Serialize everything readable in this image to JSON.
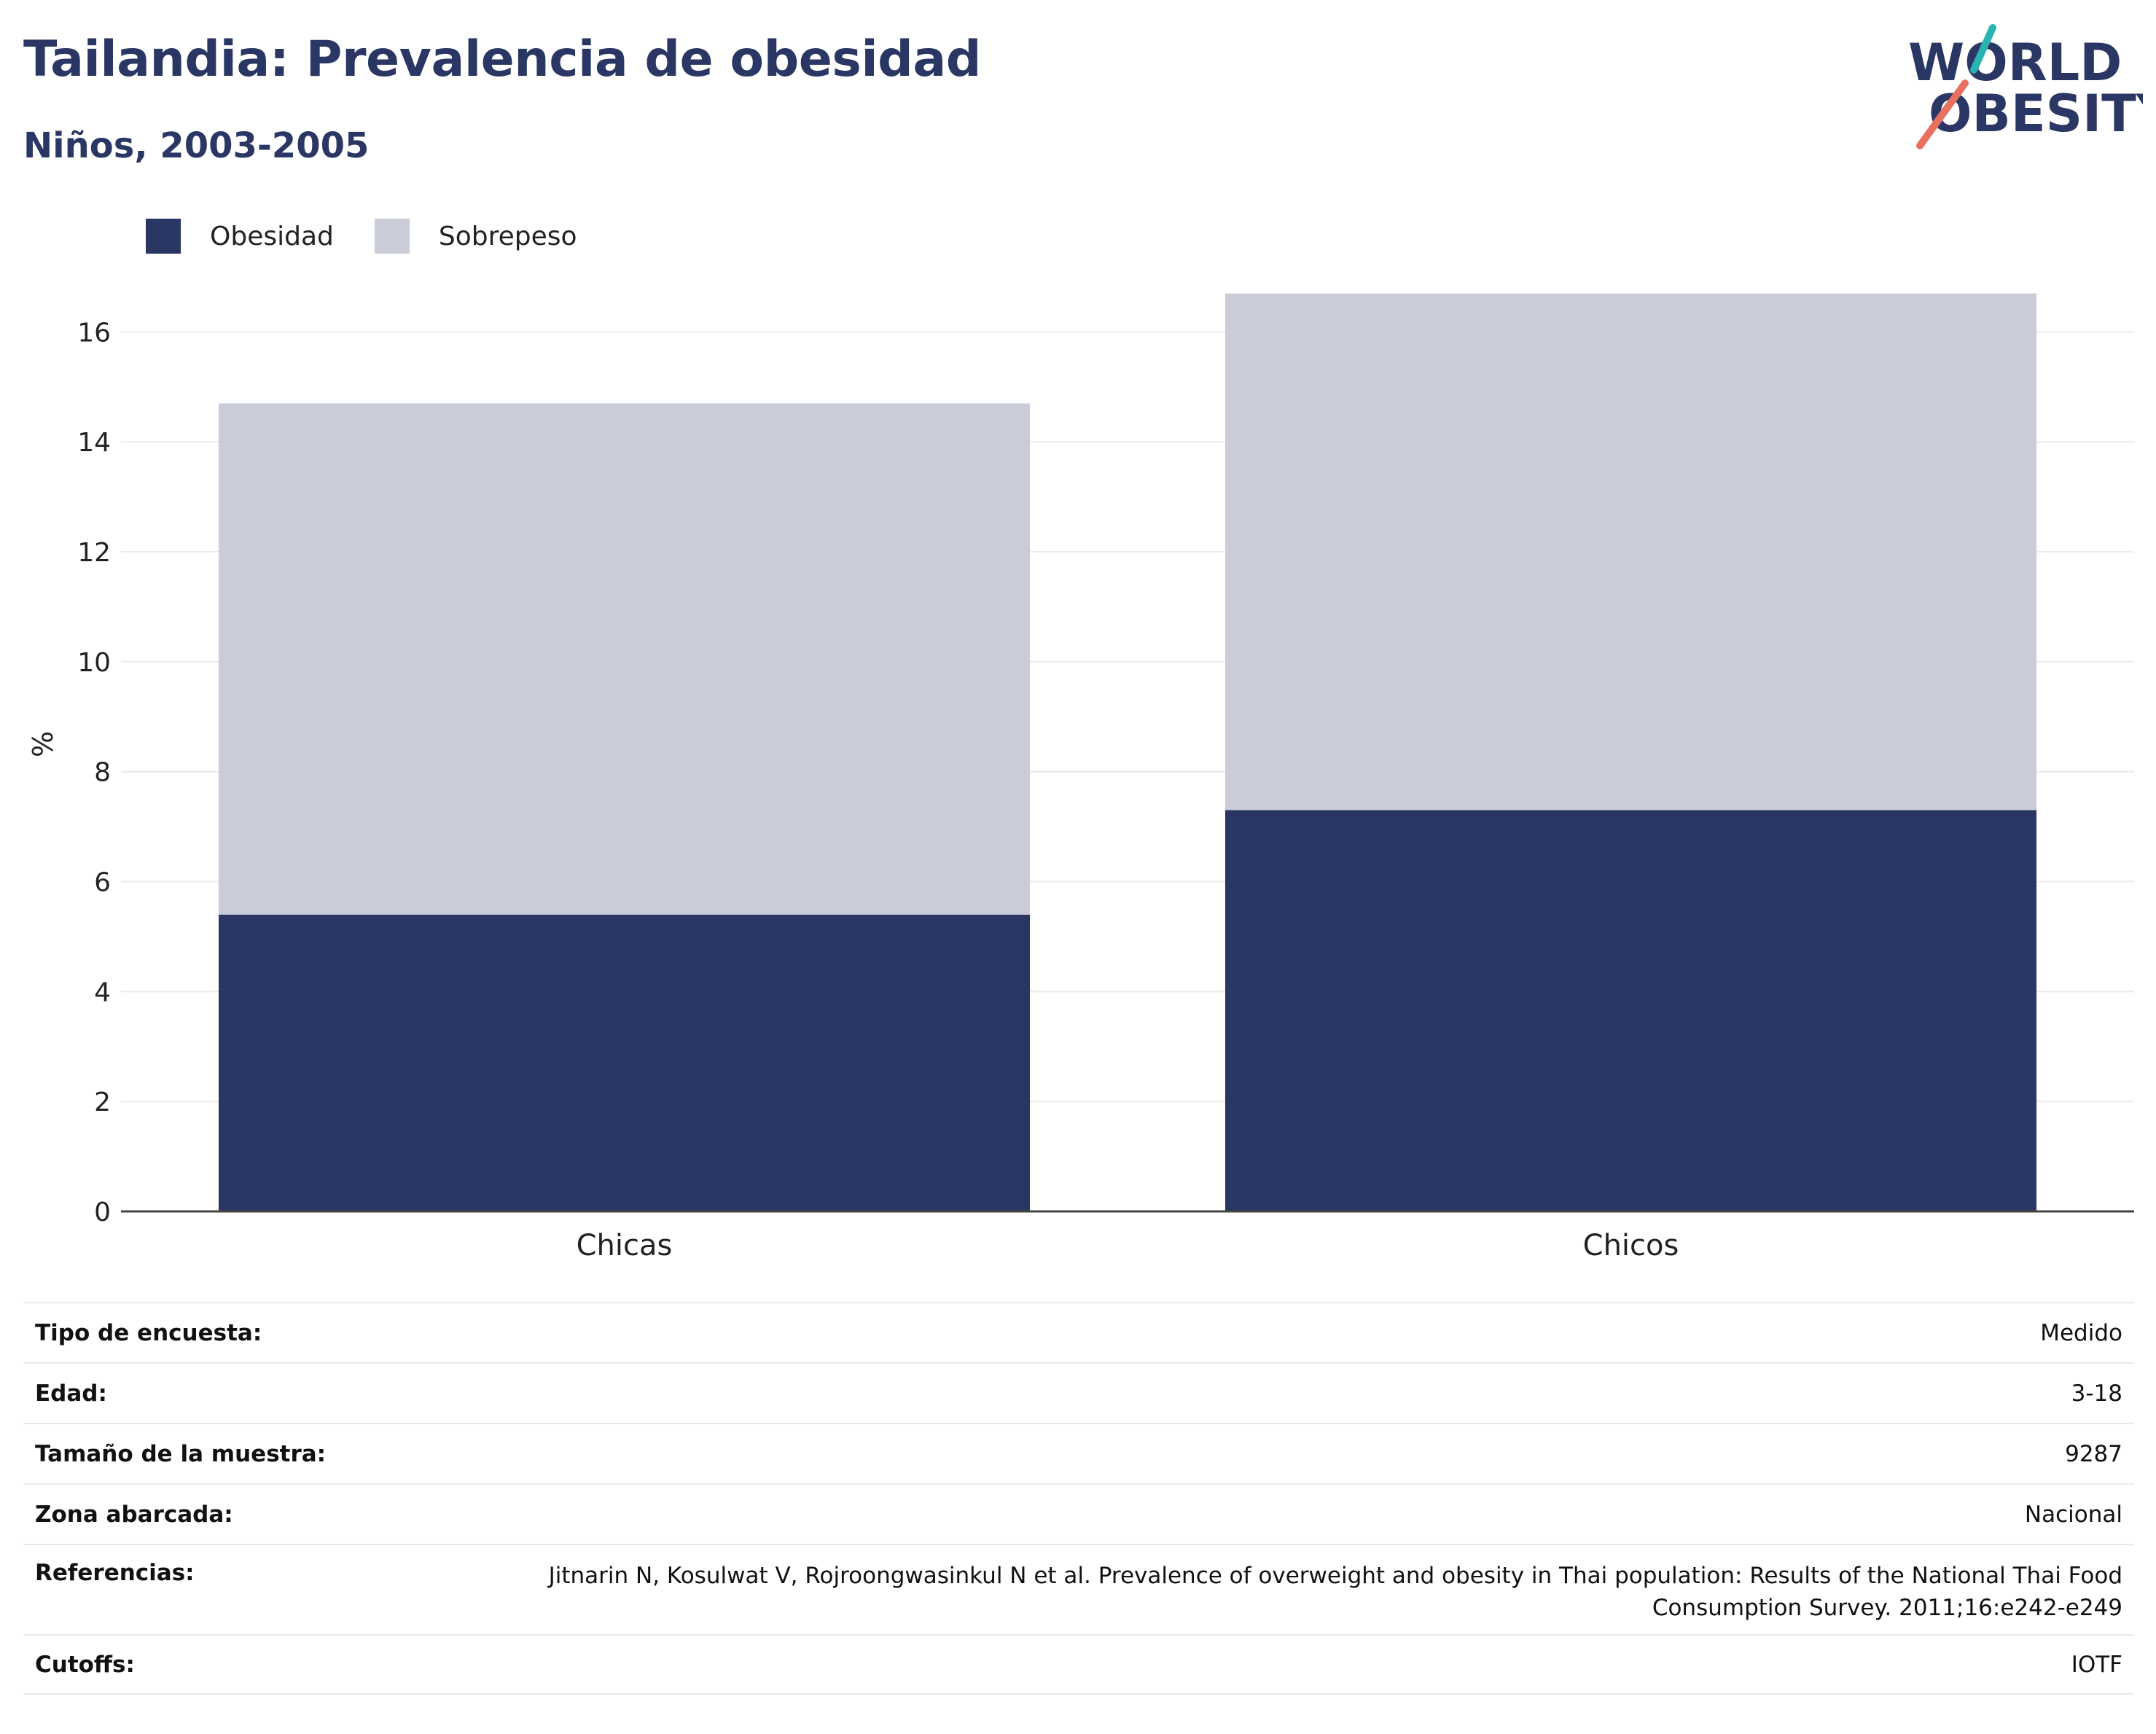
{
  "header": {
    "title": "Tailandia: Prevalencia de obesidad",
    "subtitle": "Niños, 2003-2005"
  },
  "logo": {
    "line1": "WORLD",
    "line2": "OBESITY",
    "name": "world-obesity-logo"
  },
  "colors": {
    "obesity": "#2a3663",
    "overweight": "#cacdd9",
    "accent_teal": "#2ab3b1",
    "accent_coral": "#e8705f",
    "grid": "#ebebeb",
    "axis": "#444444"
  },
  "chart_data": {
    "type": "bar",
    "stacked": true,
    "categories": [
      "Chicas",
      "Chicos"
    ],
    "series": [
      {
        "name": "Obesidad",
        "values": [
          5.4,
          7.3
        ]
      },
      {
        "name": "Sobrepeso",
        "values": [
          9.3,
          9.4
        ]
      }
    ],
    "ylabel": "%",
    "ylim": [
      0,
      17
    ],
    "yticks": [
      0,
      2,
      4,
      6,
      8,
      10,
      12,
      14,
      16
    ],
    "grid": true,
    "legend_position": "top-left"
  },
  "info": [
    {
      "label": "Tipo de encuesta:",
      "value": "Medido"
    },
    {
      "label": "Edad:",
      "value": "3-18"
    },
    {
      "label": "Tamaño de la muestra:",
      "value": "9287"
    },
    {
      "label": "Zona abarcada:",
      "value": "Nacional"
    },
    {
      "label": "Referencias:",
      "value": "Jitnarin N, Kosulwat V, Rojroongwasinkul N et al. Prevalence of overweight and obesity in Thai population: Results of the National Thai Food Consumption Survey. 2011;16:e242-e249"
    },
    {
      "label": "Cutoffs:",
      "value": "IOTF"
    }
  ]
}
